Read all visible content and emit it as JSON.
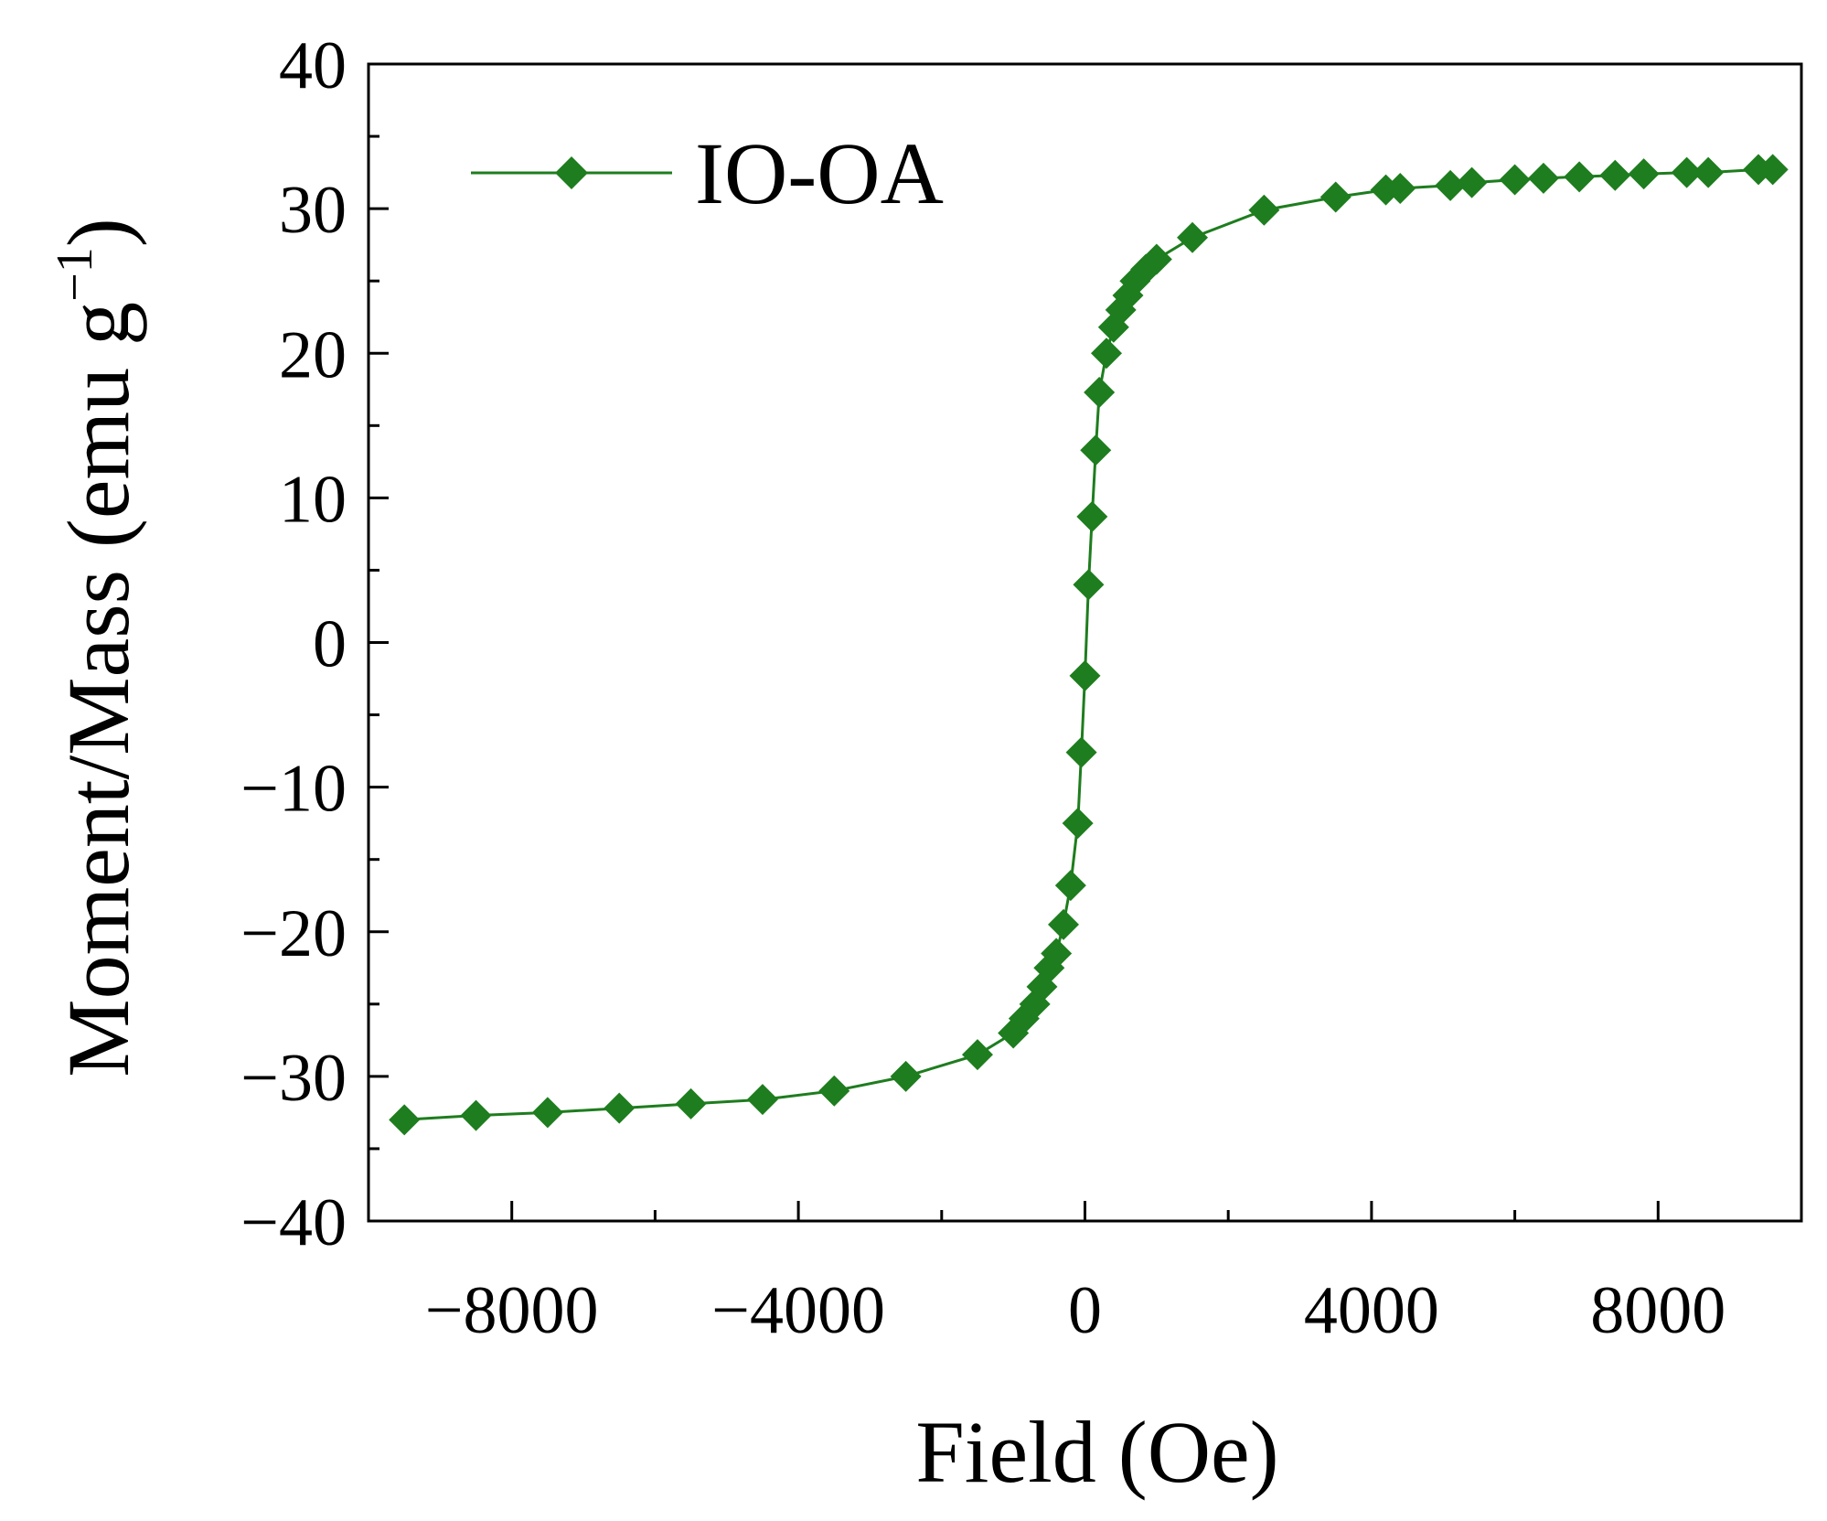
{
  "chart_data": {
    "type": "line",
    "title": "",
    "xlabel": "Field (Oe)",
    "ylabel_main": "Moment/Mass (emu g",
    "ylabel_sup": "−1",
    "ylabel_close": ")",
    "xlim": [
      -10000,
      10000
    ],
    "ylim": [
      -40,
      40
    ],
    "x_ticks": [
      -8000,
      -4000,
      0,
      4000,
      8000
    ],
    "x_tick_labels": [
      "−8000",
      "−4000",
      "0",
      "4000",
      "8000"
    ],
    "x_minor_ticks": [
      -10000,
      -6000,
      -2000,
      2000,
      6000,
      10000
    ],
    "y_ticks": [
      -40,
      -30,
      -20,
      -10,
      0,
      10,
      20,
      30,
      40
    ],
    "y_tick_labels": [
      "−40",
      "−30",
      "−20",
      "−10",
      "0",
      "10",
      "20",
      "30",
      "40"
    ],
    "y_minor_ticks": [
      -35,
      -25,
      -15,
      -5,
      5,
      15,
      25,
      35
    ],
    "grid": false,
    "legend_position": "top-left",
    "colors": {
      "series": "#1e7d1e",
      "axis": "#000000"
    },
    "series": [
      {
        "name": "IO-OA",
        "marker": "diamond",
        "x": [
          -9500,
          -8500,
          -7500,
          -6500,
          -5500,
          -4500,
          -3500,
          -2500,
          -1500,
          -1000,
          -850,
          -700,
          -600,
          -500,
          -400,
          -300,
          -200,
          -100,
          -50,
          0,
          50,
          100,
          150,
          200,
          300,
          400,
          500,
          600,
          700,
          850,
          1000,
          1500,
          2500,
          3500,
          4200,
          4400,
          5100,
          5400,
          6000,
          6400,
          6900,
          7400,
          7800,
          8400,
          8700,
          9400,
          9600
        ],
        "y": [
          -33.0,
          -32.7,
          -32.5,
          -32.2,
          -31.9,
          -31.6,
          -31.0,
          -30.0,
          -28.5,
          -27.0,
          -26.0,
          -25.0,
          -23.8,
          -22.5,
          -21.5,
          -19.5,
          -16.8,
          -12.5,
          -7.6,
          -2.3,
          4.0,
          8.7,
          13.3,
          17.3,
          20.0,
          21.8,
          23.0,
          24.0,
          25.0,
          25.8,
          26.5,
          28.0,
          29.9,
          30.8,
          31.3,
          31.4,
          31.6,
          31.8,
          32.0,
          32.1,
          32.2,
          32.3,
          32.4,
          32.5,
          32.5,
          32.7,
          32.7
        ]
      }
    ]
  }
}
